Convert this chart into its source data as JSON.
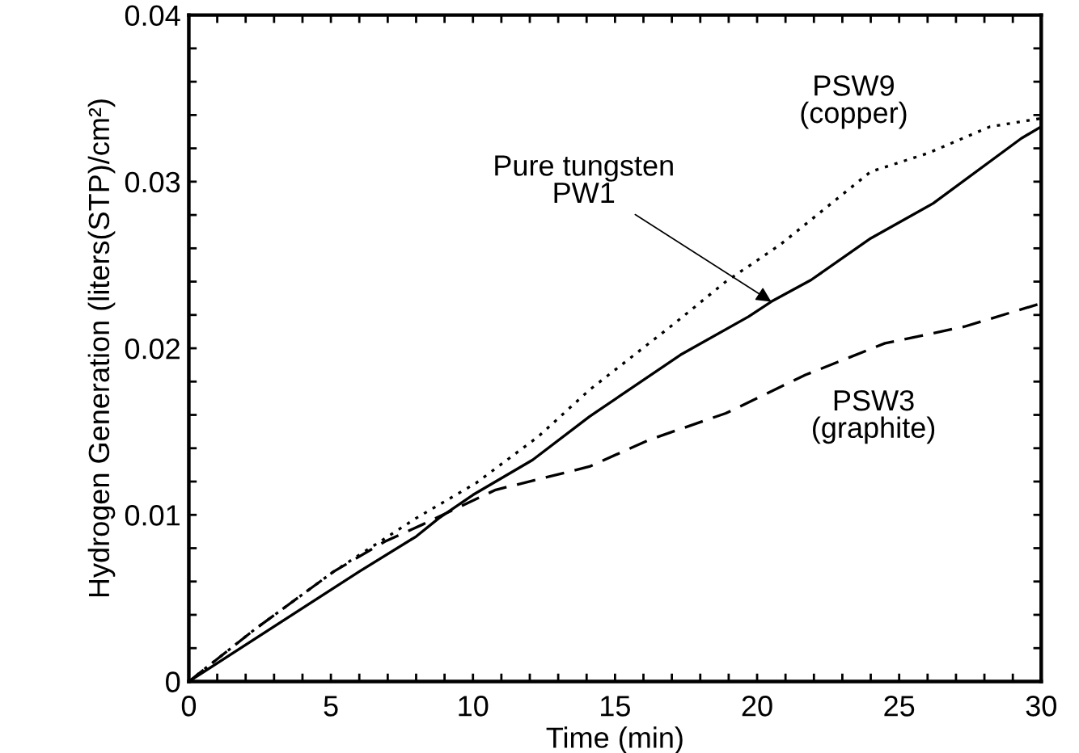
{
  "chart_data": {
    "type": "line",
    "xlabel": "Time (min)",
    "ylabel": "Hydrogen Generation (liters(STP)/cm²)",
    "xlim": [
      0,
      30
    ],
    "ylim": [
      0,
      0.04
    ],
    "xticks": [
      0,
      {
        "value": 1,
        "label": null
      },
      {
        "value": 2,
        "label": null
      },
      {
        "value": 3,
        "label": null
      },
      {
        "value": 4,
        "label": null
      },
      5,
      {
        "value": 6,
        "label": null
      },
      {
        "value": 7,
        "label": null
      },
      {
        "value": 8,
        "label": null
      },
      {
        "value": 9,
        "label": null
      },
      10,
      {
        "value": 11,
        "label": null
      },
      {
        "value": 12,
        "label": null
      },
      {
        "value": 13,
        "label": null
      },
      {
        "value": 14,
        "label": null
      },
      15,
      {
        "value": 16,
        "label": null
      },
      {
        "value": 17,
        "label": null
      },
      {
        "value": 18,
        "label": null
      },
      {
        "value": 19,
        "label": null
      },
      20,
      {
        "value": 21,
        "label": null
      },
      {
        "value": 22,
        "label": null
      },
      {
        "value": 23,
        "label": null
      },
      {
        "value": 24,
        "label": null
      },
      25,
      {
        "value": 26,
        "label": null
      },
      {
        "value": 27,
        "label": null
      },
      {
        "value": 28,
        "label": null
      },
      {
        "value": 29,
        "label": null
      },
      30
    ],
    "yticks": [
      0,
      {
        "value": 0.002,
        "label": null
      },
      {
        "value": 0.004,
        "label": null
      },
      {
        "value": 0.006,
        "label": null
      },
      {
        "value": 0.008,
        "label": null
      },
      0.01,
      {
        "value": 0.012,
        "label": null
      },
      {
        "value": 0.014,
        "label": null
      },
      {
        "value": 0.016,
        "label": null
      },
      {
        "value": 0.018,
        "label": null
      },
      0.02,
      {
        "value": 0.022,
        "label": null
      },
      {
        "value": 0.024,
        "label": null
      },
      {
        "value": 0.026,
        "label": null
      },
      {
        "value": 0.028,
        "label": null
      },
      0.03,
      {
        "value": 0.032,
        "label": null
      },
      {
        "value": 0.034,
        "label": null
      },
      {
        "value": 0.036,
        "label": null
      },
      {
        "value": 0.038,
        "label": null
      },
      0.04
    ],
    "annotations": [
      {
        "text": "Pure tungsten\nPW1",
        "x": 20.5,
        "y": 0.0228
      }
    ],
    "grid": false,
    "legend": false,
    "marker": "none",
    "series": [
      {
        "color": "#000000",
        "line_style": "solid",
        "x": [
          0,
          6,
          8,
          8.8,
          10,
          12.1,
          14.1,
          17.3,
          19.7,
          20.5,
          21.9,
          24,
          26.2,
          29.3,
          30
        ],
        "values": [
          0,
          0.0066,
          0.0087,
          0.0098,
          0.0112,
          0.0133,
          0.0159,
          0.0196,
          0.0219,
          0.0228,
          0.0241,
          0.0266,
          0.0287,
          0.0326,
          0.0333
        ]
      },
      {
        "name": "PSW9\n(copper)",
        "color": "#000000",
        "line_style": "dotted",
        "x": [
          0,
          2.3,
          5.1,
          8,
          10.1,
          12.3,
          14.1,
          17.1,
          18.9,
          20.8,
          24,
          26,
          28.2,
          30
        ],
        "values": [
          0,
          0.0031,
          0.0066,
          0.0098,
          0.0119,
          0.0147,
          0.0175,
          0.0215,
          0.024,
          0.0262,
          0.0306,
          0.0317,
          0.0333,
          0.0338
        ]
      },
      {
        "name": "PSW3\n(graphite)",
        "color": "#000000",
        "line_style": "dashed",
        "x": [
          0,
          2.3,
          5.1,
          6.9,
          8.2,
          9.3,
          10.8,
          14.1,
          16.2,
          18.9,
          21.7,
          24.5,
          27.3,
          30
        ],
        "values": [
          0,
          0.0031,
          0.0066,
          0.0084,
          0.0094,
          0.0103,
          0.0115,
          0.0129,
          0.0145,
          0.0161,
          0.0184,
          0.0203,
          0.0213,
          0.0227
        ]
      }
    ]
  }
}
